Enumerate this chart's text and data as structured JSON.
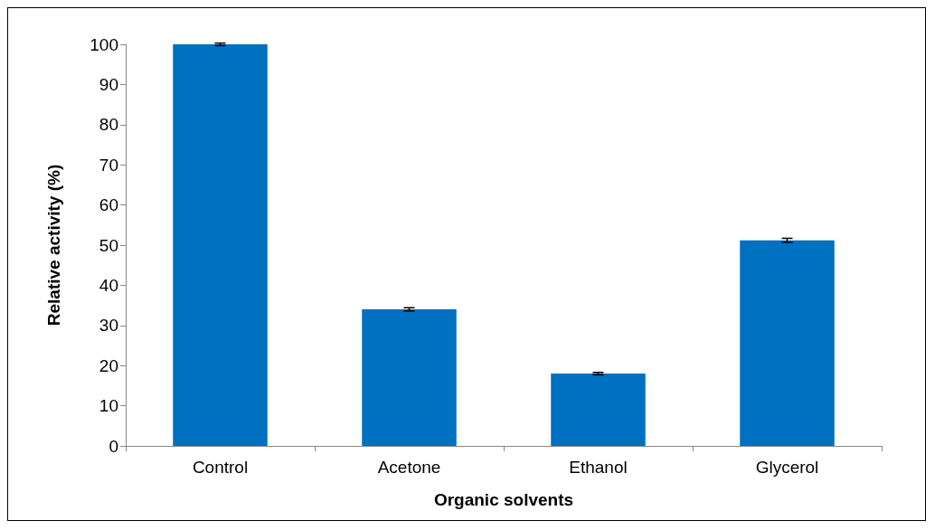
{
  "chart_data": {
    "type": "bar",
    "xlabel": "Organic solvents",
    "ylabel": "Relative activity (%)",
    "categories": [
      "Control",
      "Acetone",
      "Ethanol",
      "Glycerol"
    ],
    "values": [
      100,
      34,
      18,
      51.2
    ],
    "color": "#0070c0",
    "errors": [
      0.3,
      0.4,
      0.3,
      0.5
    ],
    "ylim": [
      0,
      100
    ],
    "yticks": [
      0,
      10,
      20,
      30,
      40,
      50,
      60,
      70,
      80,
      90,
      100
    ],
    "grid": false
  }
}
